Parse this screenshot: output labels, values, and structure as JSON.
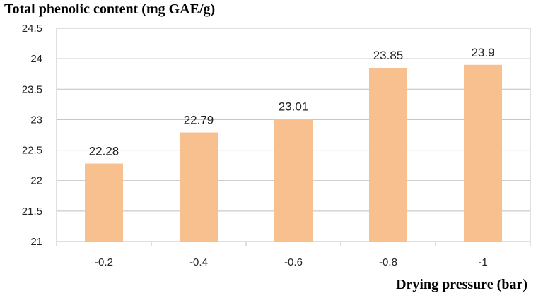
{
  "chart_data": {
    "type": "bar",
    "title": "",
    "ylabel": "Total phenolic content (mg GAE/g)",
    "xlabel": "Drying pressure (bar)",
    "categories": [
      "-0.2",
      "-0.4",
      "-0.6",
      "-0.8",
      "-1"
    ],
    "values": [
      22.28,
      22.79,
      23.01,
      23.85,
      23.9
    ],
    "data_labels": [
      "22.28",
      "22.79",
      "23.01",
      "23.85",
      "23.9"
    ],
    "ylim": [
      21,
      24.5
    ],
    "yticks": [
      "21",
      "21.5",
      "22",
      "22.5",
      "23",
      "23.5",
      "24",
      "24.5"
    ],
    "grid": true,
    "legend": "none",
    "bar_color": "#F9C08F",
    "grid_color": "#BFBFBF"
  }
}
